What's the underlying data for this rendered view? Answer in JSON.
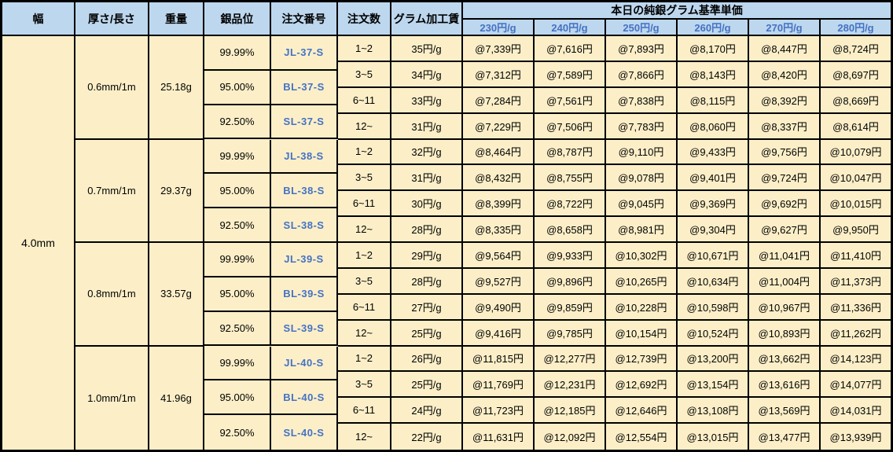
{
  "header": {
    "col_width": "幅",
    "col_thickness": "厚さ/長さ",
    "col_weight": "重量",
    "col_purity": "銀品位",
    "col_order_no": "注文番号",
    "col_qty": "注文数",
    "col_fee": "グラム加工賃",
    "price_group_title": "本日の純銀グラム基準単価",
    "price_tiers": [
      "230円/g",
      "240円/g",
      "250円/g",
      "260円/g",
      "270円/g",
      "280円/g"
    ]
  },
  "width_label": "4.0mm",
  "groups": [
    {
      "thickness": "0.6mm/1m",
      "weight": "25.18g",
      "purities": [
        {
          "purity": "99.99%",
          "order_no": "JL-37-S"
        },
        {
          "purity": "95.00%",
          "order_no": "BL-37-S"
        },
        {
          "purity": "92.50%",
          "order_no": "SL-37-S"
        }
      ],
      "rows": [
        {
          "qty": "1~2",
          "fee": "35円/g",
          "prices": [
            "@7,339円",
            "@7,616円",
            "@7,893円",
            "@8,170円",
            "@8,447円",
            "@8,724円"
          ]
        },
        {
          "qty": "3~5",
          "fee": "34円/g",
          "prices": [
            "@7,312円",
            "@7,589円",
            "@7,866円",
            "@8,143円",
            "@8,420円",
            "@8,697円"
          ]
        },
        {
          "qty": "6~11",
          "fee": "33円/g",
          "prices": [
            "@7,284円",
            "@7,561円",
            "@7,838円",
            "@8,115円",
            "@8,392円",
            "@8,669円"
          ]
        },
        {
          "qty": "12~",
          "fee": "31円/g",
          "prices": [
            "@7,229円",
            "@7,506円",
            "@7,783円",
            "@8,060円",
            "@8,337円",
            "@8,614円"
          ]
        }
      ]
    },
    {
      "thickness": "0.7mm/1m",
      "weight": "29.37g",
      "purities": [
        {
          "purity": "99.99%",
          "order_no": "JL-38-S"
        },
        {
          "purity": "95.00%",
          "order_no": "BL-38-S"
        },
        {
          "purity": "92.50%",
          "order_no": "SL-38-S"
        }
      ],
      "rows": [
        {
          "qty": "1~2",
          "fee": "32円/g",
          "prices": [
            "@8,464円",
            "@8,787円",
            "@9,110円",
            "@9,433円",
            "@9,756円",
            "@10,079円"
          ]
        },
        {
          "qty": "3~5",
          "fee": "31円/g",
          "prices": [
            "@8,432円",
            "@8,755円",
            "@9,078円",
            "@9,401円",
            "@9,724円",
            "@10,047円"
          ]
        },
        {
          "qty": "6~11",
          "fee": "30円/g",
          "prices": [
            "@8,399円",
            "@8,722円",
            "@9,045円",
            "@9,369円",
            "@9,692円",
            "@10,015円"
          ]
        },
        {
          "qty": "12~",
          "fee": "28円/g",
          "prices": [
            "@8,335円",
            "@8,658円",
            "@8,981円",
            "@9,304円",
            "@9,627円",
            "@9,950円"
          ]
        }
      ]
    },
    {
      "thickness": "0.8mm/1m",
      "weight": "33.57g",
      "purities": [
        {
          "purity": "99.99%",
          "order_no": "JL-39-S"
        },
        {
          "purity": "95.00%",
          "order_no": "BL-39-S"
        },
        {
          "purity": "92.50%",
          "order_no": "SL-39-S"
        }
      ],
      "rows": [
        {
          "qty": "1~2",
          "fee": "29円/g",
          "prices": [
            "@9,564円",
            "@9,933円",
            "@10,302円",
            "@10,671円",
            "@11,041円",
            "@11,410円"
          ]
        },
        {
          "qty": "3~5",
          "fee": "28円/g",
          "prices": [
            "@9,527円",
            "@9,896円",
            "@10,265円",
            "@10,634円",
            "@11,004円",
            "@11,373円"
          ]
        },
        {
          "qty": "6~11",
          "fee": "27円/g",
          "prices": [
            "@9,490円",
            "@9,859円",
            "@10,228円",
            "@10,598円",
            "@10,967円",
            "@11,336円"
          ]
        },
        {
          "qty": "12~",
          "fee": "25円/g",
          "prices": [
            "@9,416円",
            "@9,785円",
            "@10,154円",
            "@10,524円",
            "@10,893円",
            "@11,262円"
          ]
        }
      ]
    },
    {
      "thickness": "1.0mm/1m",
      "weight": "41.96g",
      "purities": [
        {
          "purity": "99.99%",
          "order_no": "JL-40-S"
        },
        {
          "purity": "95.00%",
          "order_no": "BL-40-S"
        },
        {
          "purity": "92.50%",
          "order_no": "SL-40-S"
        }
      ],
      "rows": [
        {
          "qty": "1~2",
          "fee": "26円/g",
          "prices": [
            "@11,815円",
            "@12,277円",
            "@12,739円",
            "@13,200円",
            "@13,662円",
            "@14,123円"
          ]
        },
        {
          "qty": "3~5",
          "fee": "25円/g",
          "prices": [
            "@11,769円",
            "@12,231円",
            "@12,692円",
            "@13,154円",
            "@13,616円",
            "@14,077円"
          ]
        },
        {
          "qty": "6~11",
          "fee": "24円/g",
          "prices": [
            "@11,723円",
            "@12,185円",
            "@12,646円",
            "@13,108円",
            "@13,569円",
            "@14,031円"
          ]
        },
        {
          "qty": "12~",
          "fee": "22円/g",
          "prices": [
            "@11,631円",
            "@12,092円",
            "@12,554円",
            "@13,015円",
            "@13,477円",
            "@13,939円"
          ]
        }
      ]
    }
  ],
  "colors": {
    "header_bg": "#BDD7EE",
    "cell_bg": "#FCEFC8",
    "accent_text": "#4472C4",
    "border": "#000000"
  }
}
